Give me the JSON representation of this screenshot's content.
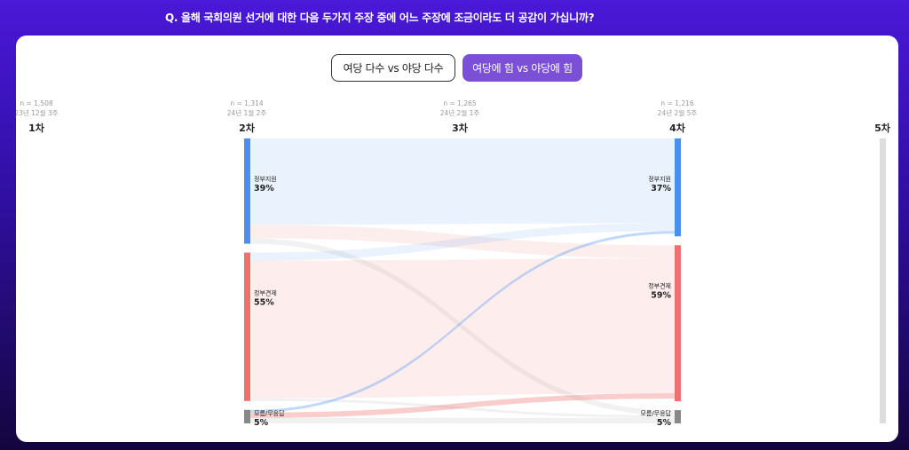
{
  "question": "Q. 올해 국회의원 선거에 대한 다음 두가지 주장 중에 어느 주장에 조금이라도 더 공감이 가십니까?",
  "toggle": {
    "option_a": "여당 다수 vs 야당 다수",
    "option_b": "여당에 힘 vs 야당에 힘",
    "selected": "option_b"
  },
  "colors": {
    "support": "#4a90f0",
    "check": "#f07070",
    "unknown": "#888888",
    "empty": "#dddddd",
    "selected_button": "#7b4fd6"
  },
  "chart_data": {
    "type": "sankey",
    "stages": [
      {
        "label": "1차",
        "n": "n = 1,508",
        "date": "23년 12월 3주"
      },
      {
        "label": "2차",
        "n": "n = 1,314",
        "date": "24년 1월 2주"
      },
      {
        "label": "3차",
        "n": "n = 1,265",
        "date": "24년 2월 1주"
      },
      {
        "label": "4차",
        "n": "n = 1,216",
        "date": "24년 2월 5주"
      },
      {
        "label": "5차",
        "n": "",
        "date": ""
      }
    ],
    "categories": [
      "정부지원",
      "정부견제",
      "모름/무응답"
    ],
    "from_stage": "2차",
    "to_stage": "4차",
    "from_values": [
      {
        "name": "정부지원",
        "value": "39%",
        "pct": 39
      },
      {
        "name": "정부견제",
        "value": "55%",
        "pct": 55
      },
      {
        "name": "모름/무응답",
        "value": "5%",
        "pct": 5
      }
    ],
    "to_values": [
      {
        "name": "정부지원",
        "value": "37%",
        "pct": 37
      },
      {
        "name": "정부견제",
        "value": "59%",
        "pct": 59
      },
      {
        "name": "모름/무응답",
        "value": "5%",
        "pct": 5
      }
    ],
    "flows": [
      {
        "from": "정부지원",
        "to": "정부지원",
        "value": 32
      },
      {
        "from": "정부지원",
        "to": "정부견제",
        "value": 5
      },
      {
        "from": "정부지원",
        "to": "모름/무응답",
        "value": 2
      },
      {
        "from": "정부견제",
        "to": "정부지원",
        "value": 3
      },
      {
        "from": "정부견제",
        "to": "정부견제",
        "value": 51
      },
      {
        "from": "정부견제",
        "to": "모름/무응답",
        "value": 1
      },
      {
        "from": "모름/무응답",
        "to": "정부지원",
        "value": 1
      },
      {
        "from": "모름/무응답",
        "to": "정부견제",
        "value": 2
      },
      {
        "from": "모름/무응답",
        "to": "모름/무응답",
        "value": 2
      }
    ]
  }
}
